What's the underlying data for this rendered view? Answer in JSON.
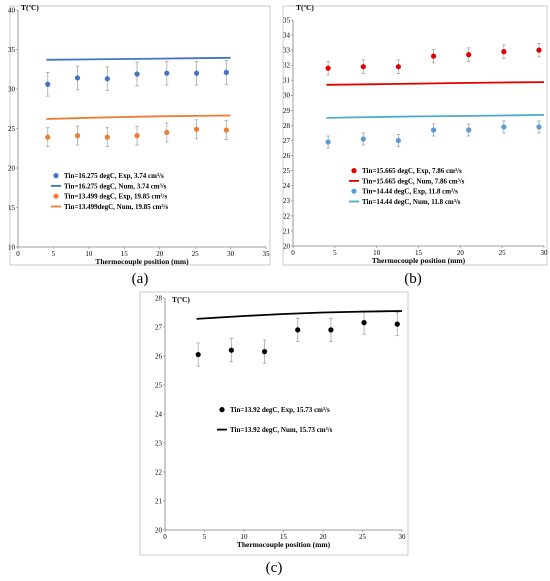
{
  "chart_data": [
    {
      "type": "scatter",
      "panel_label": "(a)",
      "xlabel": "Thermocouple position (mm)",
      "ylabel": "T(ºC)",
      "xlim": [
        0,
        35
      ],
      "ylim": [
        10,
        40
      ],
      "xticks": [
        0,
        5,
        10,
        15,
        20,
        25,
        30,
        35
      ],
      "yticks": [
        10,
        15,
        20,
        25,
        30,
        35,
        40
      ],
      "grid": false,
      "legend_position": "lower-center",
      "series": [
        {
          "name": "Tin=16.275 degC, Exp, 3.74 cm³/s",
          "kind": "points",
          "color": "#4472C4",
          "x": [
            4.2,
            8.4,
            12.6,
            16.8,
            21,
            25.2,
            29.4
          ],
          "y": [
            30.6,
            31.4,
            31.3,
            31.9,
            32.0,
            32.0,
            32.1
          ],
          "err": 1.5
        },
        {
          "name": "Tin=16.275 degC, Num, 3.74 cm³/s",
          "kind": "line",
          "color": "#4472C4",
          "x": [
            4,
            10,
            15,
            20,
            25,
            30
          ],
          "y": [
            33.7,
            33.75,
            33.8,
            33.85,
            33.9,
            33.95
          ]
        },
        {
          "name": "Tin=13.499 degC, Exp, 19.85 cm³/s",
          "kind": "points",
          "color": "#ED7D31",
          "x": [
            4.2,
            8.4,
            12.6,
            16.8,
            21,
            25.2,
            29.4
          ],
          "y": [
            23.9,
            24.1,
            23.9,
            24.1,
            24.5,
            24.9,
            24.8
          ],
          "err": 1.2
        },
        {
          "name": "Tin=13.499degC, Num, 19.85 cm³/s",
          "kind": "line",
          "color": "#ED7D31",
          "x": [
            4,
            10,
            15,
            20,
            25,
            30
          ],
          "y": [
            26.2,
            26.35,
            26.45,
            26.55,
            26.6,
            26.65
          ]
        }
      ]
    },
    {
      "type": "scatter",
      "panel_label": "(b)",
      "xlabel": "Thermocouple position (mm)",
      "ylabel": "T(ºC)",
      "xlim": [
        0,
        30
      ],
      "ylim": [
        20,
        35
      ],
      "xticks": [
        0,
        5,
        10,
        15,
        20,
        25,
        30
      ],
      "yticks": [
        20,
        21,
        22,
        23,
        24,
        25,
        26,
        27,
        28,
        29,
        30,
        31,
        32,
        33,
        34,
        35
      ],
      "grid": false,
      "legend_position": "lower-center",
      "series": [
        {
          "name": "Tin=15.665 degC, Exp, 7.86 cm³/s",
          "kind": "points",
          "color": "#E00000",
          "x": [
            4.2,
            8.4,
            12.6,
            16.8,
            21,
            25.2,
            29.4
          ],
          "y": [
            31.8,
            31.9,
            31.9,
            32.6,
            32.7,
            32.9,
            33.0
          ],
          "err": 0.45
        },
        {
          "name": "Tin=15.665 degC, Num, 7.86 cm³/s",
          "kind": "line",
          "color": "#E00000",
          "x": [
            4,
            10,
            15,
            20,
            25,
            30
          ],
          "y": [
            30.7,
            30.74,
            30.78,
            30.82,
            30.85,
            30.88
          ]
        },
        {
          "name": "Tin=14.44 degC, Exp, 11.8 cm³/s",
          "kind": "points",
          "color": "#5B9BD5",
          "x": [
            4.2,
            8.4,
            12.6,
            16.8,
            21,
            25.2,
            29.4
          ],
          "y": [
            26.9,
            27.1,
            27.0,
            27.7,
            27.7,
            27.9,
            27.9
          ],
          "err": 0.4
        },
        {
          "name": "Tin=14.44 degC, Num, 11.8 cm³/s",
          "kind": "line",
          "color": "#4BACC6",
          "x": [
            4,
            10,
            15,
            20,
            25,
            30
          ],
          "y": [
            28.5,
            28.56,
            28.6,
            28.63,
            28.66,
            28.7
          ]
        }
      ]
    },
    {
      "type": "scatter",
      "panel_label": "(c)",
      "xlabel": "Thermocouple position (mm)",
      "ylabel": "T(ºC)",
      "xlim": [
        0,
        30
      ],
      "ylim": [
        20,
        28
      ],
      "xticks": [
        0,
        5,
        10,
        15,
        20,
        25,
        30
      ],
      "yticks": [
        20,
        21,
        22,
        23,
        24,
        25,
        26,
        27,
        28
      ],
      "grid": false,
      "legend_position": "center",
      "series": [
        {
          "name": "Tin=13.92 degC, Exp, 15.73 cm³/s",
          "kind": "points",
          "color": "#000000",
          "x": [
            4.2,
            8.4,
            12.6,
            16.8,
            21,
            25.2,
            29.4
          ],
          "y": [
            26.05,
            26.2,
            26.15,
            26.9,
            26.9,
            27.15,
            27.1
          ],
          "err": 0.4
        },
        {
          "name": "Tin=13.92 degC, Num, 15.73 cm³/s",
          "kind": "line",
          "color": "#000000",
          "x": [
            4,
            10,
            15,
            20,
            25,
            30
          ],
          "y": [
            27.28,
            27.38,
            27.45,
            27.5,
            27.53,
            27.55
          ]
        }
      ]
    }
  ]
}
